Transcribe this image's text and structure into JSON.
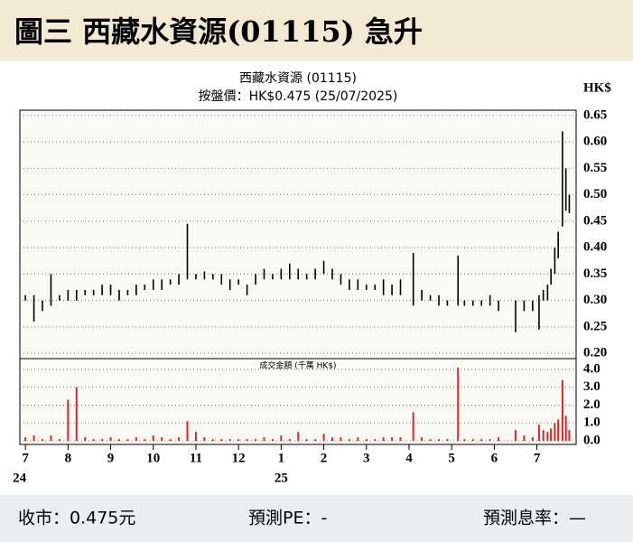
{
  "header": {
    "title": "圖三 西藏水資源(01115) 急升"
  },
  "chart_data": {
    "type": "range-bar",
    "title": "西藏水資源 (01115)",
    "subtitle": "按盤價：HK$0.475 (25/07/2025)",
    "y_unit": "HK$",
    "color": "#000000",
    "grid": true,
    "xlim": [
      -0.13,
      12.92
    ],
    "xticks": [
      {
        "value": 0,
        "label": "7"
      },
      {
        "value": 1,
        "label": "8"
      },
      {
        "value": 2,
        "label": "9"
      },
      {
        "value": 3,
        "label": "10"
      },
      {
        "value": 4,
        "label": "11"
      },
      {
        "value": 5,
        "label": "12"
      },
      {
        "value": 6,
        "label": "1"
      },
      {
        "value": 7,
        "label": "2"
      },
      {
        "value": 8,
        "label": "3"
      },
      {
        "value": 9,
        "label": "4"
      },
      {
        "value": 10,
        "label": "5"
      },
      {
        "value": 11,
        "label": "6"
      },
      {
        "value": 12,
        "label": "7"
      }
    ],
    "year_labels": [
      {
        "value": 0,
        "label": "24"
      },
      {
        "value": 6,
        "label": "25"
      }
    ],
    "ylim": [
      0.19,
      0.66
    ],
    "yticks": [
      {
        "value": 0.2,
        "label": "0.20"
      },
      0.25,
      {
        "value": 0.3,
        "label": "0.30"
      },
      0.35,
      {
        "value": 0.4,
        "label": "0.40"
      },
      0.45,
      {
        "value": 0.5,
        "label": "0.50"
      },
      0.55,
      {
        "value": 0.6,
        "label": "0.60"
      },
      0.65
    ],
    "x": [
      0.0,
      0.2,
      0.4,
      0.6,
      0.8,
      1.0,
      1.2,
      1.4,
      1.6,
      1.8,
      2.0,
      2.2,
      2.4,
      2.6,
      2.8,
      3.0,
      3.2,
      3.4,
      3.6,
      3.8,
      4.0,
      4.2,
      4.4,
      4.6,
      4.8,
      5.0,
      5.2,
      5.4,
      5.6,
      5.8,
      6.0,
      6.2,
      6.4,
      6.6,
      6.8,
      7.0,
      7.2,
      7.4,
      7.6,
      7.8,
      8.0,
      8.2,
      8.4,
      8.6,
      8.8,
      9.1,
      9.3,
      9.5,
      9.7,
      9.9,
      10.15,
      10.3,
      10.5,
      10.7,
      10.9,
      11.1,
      11.5,
      11.7,
      11.9,
      12.05,
      12.15,
      12.25,
      12.33,
      12.42,
      12.5,
      12.6,
      12.68,
      12.76
    ],
    "high": [
      0.31,
      0.31,
      0.3,
      0.35,
      0.31,
      0.32,
      0.32,
      0.32,
      0.32,
      0.33,
      0.33,
      0.32,
      0.32,
      0.33,
      0.33,
      0.34,
      0.34,
      0.34,
      0.35,
      0.445,
      0.35,
      0.355,
      0.35,
      0.35,
      0.34,
      0.34,
      0.33,
      0.35,
      0.36,
      0.35,
      0.36,
      0.37,
      0.36,
      0.35,
      0.36,
      0.375,
      0.36,
      0.35,
      0.34,
      0.34,
      0.33,
      0.33,
      0.34,
      0.33,
      0.34,
      0.39,
      0.32,
      0.31,
      0.31,
      0.3,
      0.385,
      0.3,
      0.3,
      0.3,
      0.31,
      0.3,
      0.3,
      0.3,
      0.3,
      0.31,
      0.32,
      0.33,
      0.36,
      0.4,
      0.43,
      0.62,
      0.55,
      0.5
    ],
    "low": [
      0.3,
      0.26,
      0.28,
      0.29,
      0.3,
      0.3,
      0.3,
      0.31,
      0.31,
      0.31,
      0.31,
      0.3,
      0.31,
      0.31,
      0.32,
      0.32,
      0.32,
      0.33,
      0.33,
      0.34,
      0.34,
      0.34,
      0.34,
      0.33,
      0.32,
      0.33,
      0.31,
      0.33,
      0.34,
      0.34,
      0.34,
      0.34,
      0.34,
      0.34,
      0.34,
      0.35,
      0.34,
      0.33,
      0.32,
      0.32,
      0.32,
      0.32,
      0.31,
      0.31,
      0.31,
      0.29,
      0.3,
      0.3,
      0.29,
      0.29,
      0.29,
      0.29,
      0.29,
      0.29,
      0.29,
      0.28,
      0.24,
      0.28,
      0.28,
      0.245,
      0.3,
      0.3,
      0.33,
      0.35,
      0.38,
      0.44,
      0.47,
      0.465
    ],
    "volume": {
      "title": "成交金額 (千萬 HK$)",
      "color": "#d9262b",
      "ylim": [
        -0.2,
        4.6
      ],
      "yticks": [
        {
          "value": 0,
          "label": "0.0"
        },
        {
          "value": 1,
          "label": "1.0"
        },
        {
          "value": 2,
          "label": "2.0"
        },
        {
          "value": 3,
          "label": "3.0"
        },
        {
          "value": 4,
          "label": "4.0"
        }
      ],
      "values": [
        0.2,
        0.3,
        0.1,
        0.3,
        0.1,
        2.3,
        3.0,
        0.2,
        0.1,
        0.1,
        0.2,
        0.1,
        0.1,
        0.2,
        0.1,
        0.3,
        0.2,
        0.1,
        0.2,
        1.1,
        0.5,
        0.2,
        0.1,
        0.1,
        0.1,
        0.1,
        0.1,
        0.1,
        0.2,
        0.1,
        0.3,
        0.1,
        0.5,
        0.1,
        0.1,
        0.4,
        0.2,
        0.2,
        0.1,
        0.2,
        0.1,
        0.1,
        0.2,
        0.2,
        0.2,
        1.6,
        0.2,
        0.1,
        0.1,
        0.1,
        4.1,
        0.1,
        0.1,
        0.1,
        0.1,
        0.2,
        0.6,
        0.3,
        0.2,
        0.9,
        0.6,
        0.5,
        0.7,
        1.0,
        1.2,
        3.4,
        1.4,
        0.6
      ]
    }
  },
  "footer": {
    "close": "收市：0.475元",
    "pe": "預測PE：-",
    "yield": "預測息率：—"
  }
}
